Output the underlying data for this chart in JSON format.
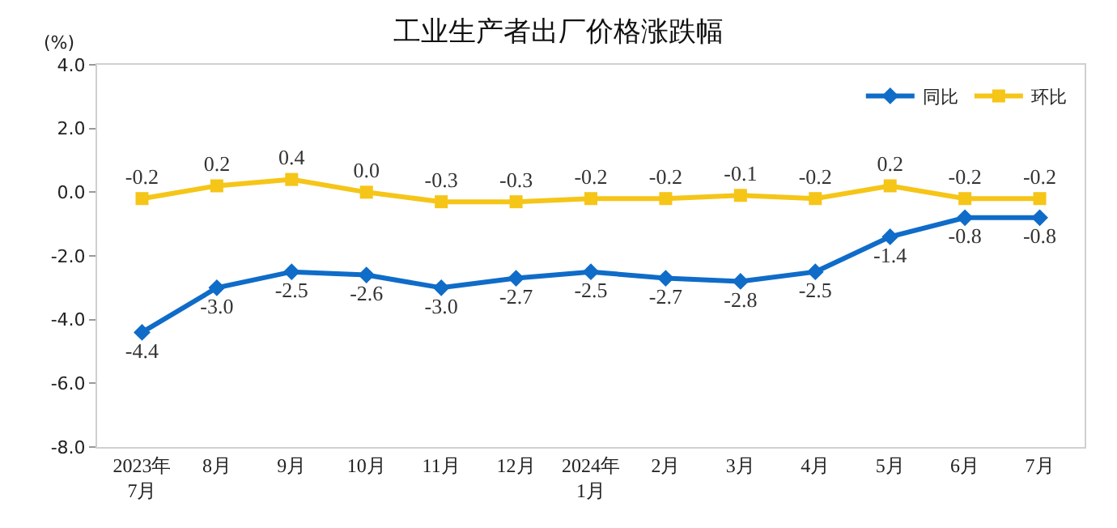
{
  "chart_data": {
    "type": "line",
    "title": "工业生产者出厂价格涨跌幅",
    "ylabel": "(%)",
    "categories": [
      "2023年\n7月",
      "8月",
      "9月",
      "10月",
      "11月",
      "12月",
      "2024年\n1月",
      "2月",
      "3月",
      "4月",
      "5月",
      "6月",
      "7月"
    ],
    "series": [
      {
        "name": "同比",
        "color": "#0f6cc8",
        "marker": "diamond",
        "values": [
          -4.4,
          -3.0,
          -2.5,
          -2.6,
          -3.0,
          -2.7,
          -2.5,
          -2.7,
          -2.8,
          -2.5,
          -1.4,
          -0.8,
          -0.8
        ],
        "value_labels": [
          "-4.4",
          "-3.0",
          "-2.5",
          "-2.6",
          "-3.0",
          "-2.7",
          "-2.5",
          "-2.7",
          "-2.8",
          "-2.5",
          "-1.4",
          "-0.8",
          "-0.8"
        ]
      },
      {
        "name": "环比",
        "color": "#f5c518",
        "marker": "square",
        "values": [
          -0.2,
          0.2,
          0.4,
          0.0,
          -0.3,
          -0.3,
          -0.2,
          -0.2,
          -0.1,
          -0.2,
          0.2,
          -0.2,
          -0.2
        ],
        "value_labels": [
          "-0.2",
          "0.2",
          "0.4",
          "0.0",
          "-0.3",
          "-0.3",
          "-0.2",
          "-0.2",
          "-0.1",
          "-0.2",
          "0.2",
          "-0.2",
          "-0.2"
        ]
      }
    ],
    "ylim": [
      -8,
      4
    ],
    "yticks": [
      {
        "value": -8,
        "label": "-8.0"
      },
      {
        "value": -6,
        "label": "-6.0"
      },
      {
        "value": -4,
        "label": "-4.0"
      },
      {
        "value": -2,
        "label": "-2.0"
      },
      {
        "value": 0,
        "label": "0.0"
      },
      {
        "value": 2,
        "label": "2.0"
      },
      {
        "value": 4,
        "label": "4.0"
      }
    ],
    "grid": false,
    "legend": "top right",
    "line_style": "solid"
  }
}
